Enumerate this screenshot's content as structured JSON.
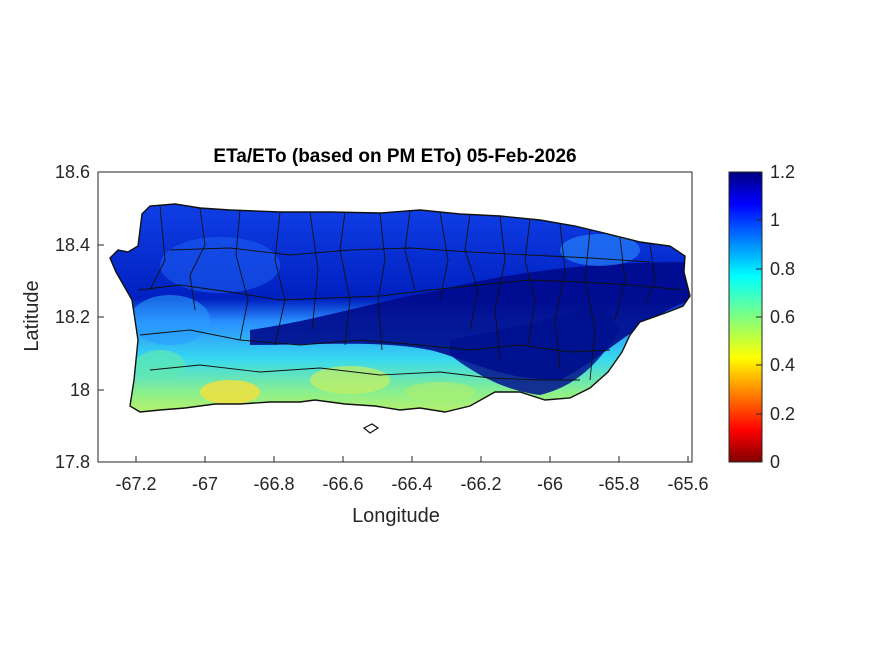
{
  "figure": {
    "title": "ETa/ETo (based on PM ETo) 05-Feb-2026",
    "xlabel": "Longitude",
    "ylabel": "Latitude"
  },
  "map": {
    "xlim": [
      -67.3,
      -65.6
    ],
    "ylim": [
      17.8,
      18.6
    ],
    "x_ticks": [
      "-67.2",
      "-67",
      "-66.8",
      "-66.6",
      "-66.4",
      "-66.2",
      "-66",
      "-65.8",
      "-65.6"
    ],
    "x_tick_values": [
      -67.2,
      -67.0,
      -66.8,
      -66.6,
      -66.4,
      -66.2,
      -66.0,
      -65.8,
      -65.6
    ],
    "y_ticks": [
      "17.8",
      "18",
      "18.2",
      "18.4",
      "18.6"
    ],
    "y_tick_values": [
      17.8,
      18.0,
      18.2,
      18.4,
      18.6
    ],
    "region": "Puerto Rico municipalities",
    "pattern": "high ETa/ETo (~1.0-1.2, dark blue) across north and central mountains; lower values (~0.5-0.8, cyan/green/yellow) along southern coastal plain"
  },
  "colorbar": {
    "colormap": "jet",
    "range": [
      0,
      1.2
    ],
    "ticks": [
      "0",
      "0.2",
      "0.4",
      "0.6",
      "0.8",
      "1",
      "1.2"
    ],
    "tick_values": [
      0,
      0.2,
      0.4,
      0.6,
      0.8,
      1.0,
      1.2
    ]
  }
}
